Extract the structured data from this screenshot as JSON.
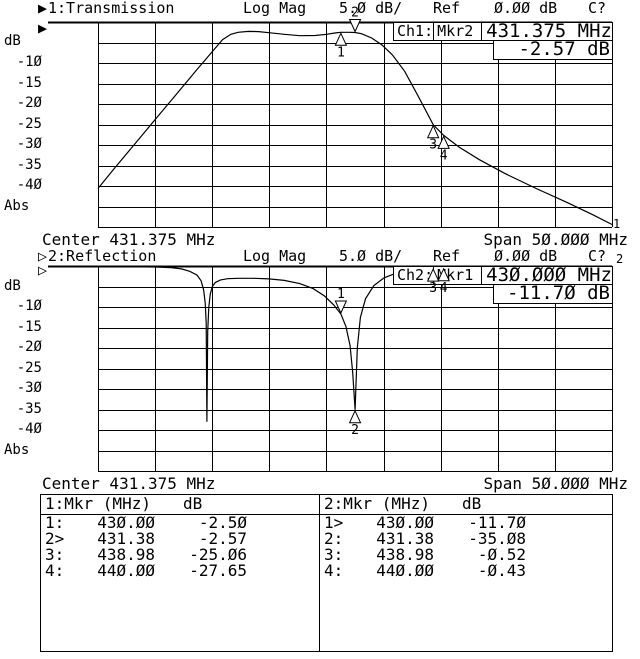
{
  "app": {
    "background": "#ffffff",
    "foreground": "#000000"
  },
  "panels": [
    {
      "header": {
        "pointer": "▶",
        "title": "1:Transmission",
        "format": "Log Mag",
        "scale": "5.0 dB/",
        "ref_label": "Ref",
        "ref_value": "0.00 dB",
        "status": "C?"
      },
      "edge_pointer": "▶",
      "readout": {
        "channel": "Ch1:",
        "marker": "Mkr2",
        "freq": "431.375 MHz",
        "value": "-2.57 dB"
      },
      "axis_unit": "dB",
      "axis_ticks": [
        "-10",
        "-15",
        "-20",
        "-25",
        "-30",
        "-35",
        "-40"
      ],
      "axis_bottom": "Abs",
      "center_label": "Center 431.375 MHz",
      "span_label": "Span 50.000 MHz",
      "trace_label": "1"
    },
    {
      "header": {
        "pointer": "▷",
        "title": "2:Reflection",
        "format": "Log Mag",
        "scale": "5.0 dB/",
        "ref_label": "Ref",
        "ref_value": "0.00 dB",
        "status": "C?"
      },
      "edge_pointer": "▷",
      "readout": {
        "channel": "Ch2:",
        "marker": "Mkr1",
        "freq": "430.000 MHz",
        "value": "-11.70 dB"
      },
      "axis_unit": "dB",
      "axis_ticks": [
        "-10",
        "-15",
        "-20",
        "-25",
        "-30",
        "-35",
        "-40"
      ],
      "axis_bottom": "Abs",
      "center_label": "Center 431.375 MHz",
      "span_label": "Span 50.000 MHz",
      "trace_label": "2"
    }
  ],
  "marker_table": {
    "columns": [
      {
        "header": "1:Mkr (MHz)",
        "unit_header": "dB",
        "rows": [
          {
            "mkr": "1:",
            "freq": "430.00",
            "db": "-2.50"
          },
          {
            "mkr": "2>",
            "freq": "431.38",
            "db": "-2.57"
          },
          {
            "mkr": "3:",
            "freq": "438.98",
            "db": "-25.06"
          },
          {
            "mkr": "4:",
            "freq": "440.00",
            "db": "-27.65"
          }
        ]
      },
      {
        "header": "2:Mkr (MHz)",
        "unit_header": "dB",
        "rows": [
          {
            "mkr": "1>",
            "freq": "430.00",
            "db": "-11.70"
          },
          {
            "mkr": "2:",
            "freq": "431.38",
            "db": "-35.08"
          },
          {
            "mkr": "3:",
            "freq": "438.98",
            "db": "-0.52"
          },
          {
            "mkr": "4:",
            "freq": "440.00",
            "db": "-0.43"
          }
        ]
      }
    ]
  },
  "chart_data": [
    {
      "type": "line",
      "title": "1:Transmission",
      "ylabel": "dB",
      "x_range": [
        406.375,
        456.375
      ],
      "y_range": [
        -50,
        0
      ],
      "center_mhz": 431.375,
      "span_mhz": 50.0,
      "scale_db_per_div": 5.0,
      "ref_db": 0.0,
      "grid": {
        "cols": 9,
        "rows": 10
      },
      "points": [
        [
          406.375,
          -40.6
        ],
        [
          408,
          -35.6
        ],
        [
          410,
          -29.6
        ],
        [
          412,
          -23.6
        ],
        [
          414,
          -17.6
        ],
        [
          416,
          -11.6
        ],
        [
          417.5,
          -7.2
        ],
        [
          418.5,
          -4.3
        ],
        [
          419.3,
          -3.0
        ],
        [
          420,
          -2.5
        ],
        [
          421,
          -2.3
        ],
        [
          422,
          -2.35
        ],
        [
          423,
          -2.6
        ],
        [
          424.5,
          -3.0
        ],
        [
          426,
          -3.35
        ],
        [
          427.5,
          -3.3
        ],
        [
          428.6,
          -3.0
        ],
        [
          429.5,
          -2.65
        ],
        [
          430,
          -2.5
        ],
        [
          430.8,
          -2.5
        ],
        [
          431.38,
          -2.57
        ],
        [
          432,
          -2.85
        ],
        [
          433,
          -3.9
        ],
        [
          434,
          -5.6
        ],
        [
          435,
          -8.0
        ],
        [
          436.2,
          -12.0
        ],
        [
          437.5,
          -18.0
        ],
        [
          438.98,
          -25.06
        ],
        [
          440,
          -27.65
        ],
        [
          441.5,
          -30.5
        ],
        [
          443.5,
          -33.6
        ],
        [
          446,
          -37.0
        ],
        [
          449,
          -40.6
        ],
        [
          452,
          -44.0
        ],
        [
          454.5,
          -47.0
        ],
        [
          456.375,
          -49.4
        ]
      ],
      "markers": [
        {
          "n": "1",
          "mhz": 430.0,
          "db": -2.5,
          "active": false
        },
        {
          "n": "2",
          "mhz": 431.38,
          "db": -2.57,
          "active": true
        },
        {
          "n": "3",
          "mhz": 438.98,
          "db": -25.06,
          "active": false
        },
        {
          "n": "4",
          "mhz": 440.0,
          "db": -27.65,
          "active": false
        }
      ]
    },
    {
      "type": "line",
      "title": "2:Reflection",
      "ylabel": "dB",
      "x_range": [
        406.375,
        456.375
      ],
      "y_range": [
        -50,
        0
      ],
      "center_mhz": 431.375,
      "span_mhz": 50.0,
      "scale_db_per_div": 5.0,
      "ref_db": 0.0,
      "grid": {
        "cols": 9,
        "rows": 10
      },
      "points": [
        [
          406.375,
          -0.15
        ],
        [
          410,
          -0.2
        ],
        [
          412,
          -0.25
        ],
        [
          413.5,
          -0.4
        ],
        [
          414.5,
          -0.7
        ],
        [
          415.3,
          -1.3
        ],
        [
          416,
          -2.2
        ],
        [
          416.4,
          -3.6
        ],
        [
          416.65,
          -5.8
        ],
        [
          416.8,
          -9
        ],
        [
          416.9,
          -14
        ],
        [
          416.97,
          -38
        ],
        [
          417.05,
          -16
        ],
        [
          417.15,
          -10
        ],
        [
          417.3,
          -6.8
        ],
        [
          417.5,
          -5.0
        ],
        [
          417.8,
          -4.0
        ],
        [
          418.3,
          -3.4
        ],
        [
          419,
          -3.1
        ],
        [
          420,
          -3.0
        ],
        [
          421.5,
          -3.0
        ],
        [
          423,
          -3.15
        ],
        [
          424.5,
          -3.5
        ],
        [
          426,
          -4.3
        ],
        [
          427.3,
          -5.5
        ],
        [
          428.4,
          -7.3
        ],
        [
          429.3,
          -9.5
        ],
        [
          430,
          -11.7
        ],
        [
          430.5,
          -14.8
        ],
        [
          430.9,
          -19.5
        ],
        [
          431.15,
          -26
        ],
        [
          431.38,
          -35.08
        ],
        [
          431.6,
          -20
        ],
        [
          431.9,
          -12.5
        ],
        [
          432.4,
          -8
        ],
        [
          433.2,
          -4.8
        ],
        [
          434.2,
          -2.9
        ],
        [
          435.5,
          -1.6
        ],
        [
          437,
          -0.9
        ],
        [
          438.98,
          -0.52
        ],
        [
          440,
          -0.43
        ],
        [
          443,
          -0.35
        ],
        [
          448,
          -0.3
        ],
        [
          452,
          -0.27
        ],
        [
          456.375,
          -0.25
        ]
      ],
      "markers": [
        {
          "n": "1",
          "mhz": 430.0,
          "db": -11.7,
          "active": true
        },
        {
          "n": "2",
          "mhz": 431.38,
          "db": -35.08,
          "active": false
        },
        {
          "n": "3",
          "mhz": 438.98,
          "db": -0.52,
          "active": false
        },
        {
          "n": "4",
          "mhz": 440.0,
          "db": -0.43,
          "active": false
        }
      ]
    }
  ]
}
